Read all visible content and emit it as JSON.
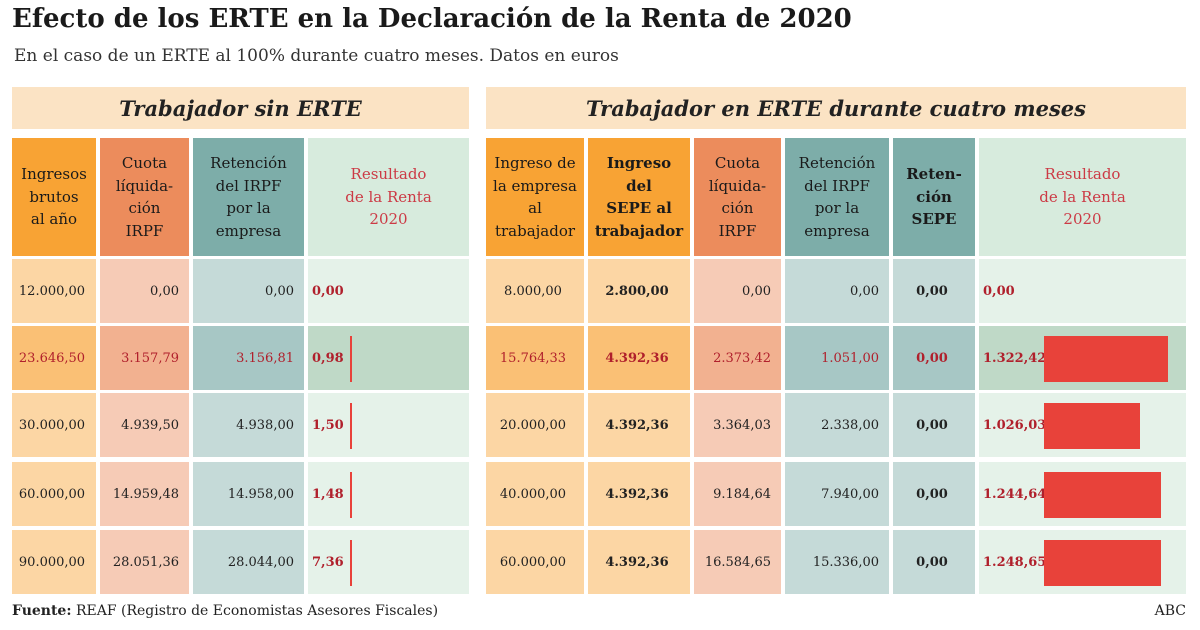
{
  "title": "Efecto de los ERTE en la Declaración de la Renta de 2020",
  "subtitle": "En el caso de un ERTE al 100% durante cuatro meses. Datos en euros",
  "colors": {
    "orange": "#f8a334",
    "salmon": "#ec8c5c",
    "teal": "#7dada9",
    "green": "#d7ebdd",
    "peach": "#fbe3c4",
    "bar": "#e8423a",
    "text_red": "#b0202c"
  },
  "footer": {
    "source_label": "Fuente:",
    "source_text": "REAF (Registro de Economistas Asesores Fiscales)",
    "brand": "ABC"
  },
  "chart_data": [
    {
      "type": "table",
      "title": "Trabajador sin ERTE",
      "columns": [
        "Ingresos\nbrutos\nal año",
        "Cuota\nlíquida-\nción\nIRPF",
        "Retención\ndel IRPF\npor la\nempresa",
        "Resultado\nde la Renta\n2020"
      ],
      "rows": [
        [
          "12.000,00",
          "0,00",
          "0,00",
          "0,00"
        ],
        [
          "23.646,50",
          "3.157,79",
          "3.156,81",
          "0,98"
        ],
        [
          "30.000,00",
          "4.939,50",
          "4.938,00",
          "1,50"
        ],
        [
          "60.000,00",
          "14.959,48",
          "14.958,00",
          "1,48"
        ],
        [
          "90.000,00",
          "28.051,36",
          "28.044,00",
          "7,36"
        ]
      ],
      "result_values": [
        0,
        0.98,
        1.5,
        1.48,
        7.36
      ]
    },
    {
      "type": "bar",
      "title": "Trabajador en ERTE durante cuatro meses",
      "columns": [
        "Ingreso de\nla empresa\nal\ntrabajador",
        "Ingreso\ndel\nSEPE al\ntrabajador",
        "Cuota\nlíquida-\nción\nIRPF",
        "Retención\ndel IRPF\npor la\nempresa",
        "Reten-\nción\nSEPE",
        "Resultado\nde la Renta\n2020"
      ],
      "rows": [
        [
          "8.000,00",
          "2.800,00",
          "0,00",
          "0,00",
          "0,00",
          "0,00"
        ],
        [
          "15.764,33",
          "4.392,36",
          "2.373,42",
          "1.051,00",
          "0,00",
          "1.322,42"
        ],
        [
          "20.000,00",
          "4.392,36",
          "3.364,03",
          "2.338,00",
          "0,00",
          "1.026,03"
        ],
        [
          "40.000,00",
          "4.392,36",
          "9.184,64",
          "7.940,00",
          "0,00",
          "1.244,64"
        ],
        [
          "60.000,00",
          "4.392,36",
          "16.584,65",
          "15.336,00",
          "0,00",
          "1.248,65"
        ]
      ],
      "values": [
        0,
        1322.42,
        1026.03,
        1244.64,
        1248.65
      ]
    }
  ]
}
